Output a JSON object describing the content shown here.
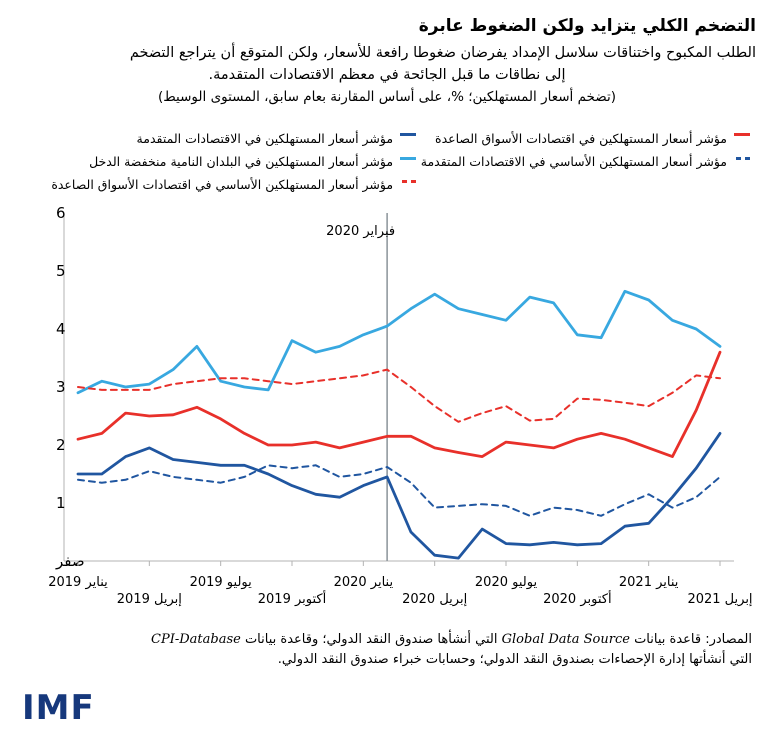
{
  "header": {
    "title": "التضخم الكلي يتزايد ولكن الضغوط عابرة",
    "subtitle_line1": "الطلب المكبوح واختناقات سلاسل الإمداد يفرضان ضغوطا رافعة للأسعار، ولكن المتوقع أن يتراجع التضخم",
    "subtitle_line2": "إلى نطاقات ما قبل الجائحة في معظم الاقتصادات المتقدمة.",
    "note": "(تضخم أسعار المستهلكين؛ %، على أساس المقارنة بعام سابق، المستوى الوسيط)"
  },
  "legend": {
    "items": [
      {
        "label": "مؤشر أسعار المستهلكين في اقتصادات الأسواق الصاعدة",
        "color": "#e8302a",
        "dash": false
      },
      {
        "label": "مؤشر أسعار المستهلكين في الاقتصادات المتقدمة",
        "color": "#2056a0",
        "dash": false
      },
      {
        "label": "مؤشر أسعار المستهلكين الأساسي في الاقتصادات المتقدمة",
        "color": "#2056a0",
        "dash": true
      },
      {
        "label": "مؤشر أسعار المستهلكين في البلدان النامية منخفضة الدخل",
        "color": "#38a8e0",
        "dash": false
      },
      {
        "label": "مؤشر أسعار المستهلكين الأساسي في اقتصادات الأسواق الصاعدة",
        "color": "#e8302a",
        "dash": true
      }
    ],
    "rows": [
      [
        0,
        1
      ],
      [
        2,
        3
      ],
      [
        4
      ]
    ]
  },
  "chart_data": {
    "type": "line",
    "x_months": [
      "2019-01",
      "2019-02",
      "2019-03",
      "2019-04",
      "2019-05",
      "2019-06",
      "2019-07",
      "2019-08",
      "2019-09",
      "2019-10",
      "2019-11",
      "2019-12",
      "2020-01",
      "2020-02",
      "2020-03",
      "2020-04",
      "2020-05",
      "2020-06",
      "2020-07",
      "2020-08",
      "2020-09",
      "2020-10",
      "2020-11",
      "2020-12",
      "2021-01",
      "2021-02",
      "2021-03",
      "2021-04"
    ],
    "x_tick_labels": [
      "يناير 2019",
      "إبريل 2019",
      "يوليو 2019",
      "أكتوبر 2019",
      "يناير 2020",
      "إبريل 2020",
      "يوليو 2020",
      "أكتوبر 2020",
      "يناير 2021",
      "إبريل 2021"
    ],
    "x_tick_month_indices": [
      0,
      3,
      6,
      9,
      12,
      15,
      18,
      21,
      24,
      27
    ],
    "y_ticks": [
      {
        "value": 0,
        "label": "صفر"
      },
      {
        "value": 1,
        "label": "1"
      },
      {
        "value": 2,
        "label": "2"
      },
      {
        "value": 3,
        "label": "3"
      },
      {
        "value": 4,
        "label": "4"
      },
      {
        "value": 5,
        "label": "5"
      },
      {
        "value": 6,
        "label": "6"
      }
    ],
    "ylim": [
      0,
      6
    ],
    "grid": false,
    "annotation": {
      "text": "فبراير 2020",
      "month_index": 13,
      "line_color": "#8b9399"
    },
    "series": [
      {
        "name": "مؤشر أسعار المستهلكين في البلدان النامية منخفضة الدخل",
        "color": "#38a8e0",
        "style": "solid",
        "values": [
          2.9,
          3.1,
          3.0,
          3.05,
          3.3,
          3.7,
          3.1,
          3.0,
          2.95,
          3.8,
          3.6,
          3.7,
          3.9,
          4.05,
          4.35,
          4.6,
          4.35,
          4.25,
          4.15,
          4.55,
          4.45,
          3.9,
          3.85,
          4.65,
          4.5,
          4.15,
          4.0,
          3.7
        ]
      },
      {
        "name": "مؤشر أسعار المستهلكين الأساسي في اقتصادات الأسواق الصاعدة",
        "color": "#e8302a",
        "style": "dashed",
        "values": [
          3.0,
          2.95,
          2.95,
          2.95,
          3.05,
          3.1,
          3.15,
          3.15,
          3.1,
          3.05,
          3.1,
          3.15,
          3.2,
          3.3,
          3.0,
          2.67,
          2.4,
          2.55,
          2.67,
          2.42,
          2.45,
          2.8,
          2.78,
          2.73,
          2.67,
          2.9,
          3.2,
          3.15
        ]
      },
      {
        "name": "مؤشر أسعار المستهلكين في اقتصادات الأسواق الصاعدة",
        "color": "#e8302a",
        "style": "solid",
        "values": [
          2.1,
          2.2,
          2.55,
          2.5,
          2.52,
          2.65,
          2.45,
          2.2,
          2.0,
          2.0,
          2.05,
          1.95,
          2.05,
          2.15,
          2.15,
          1.95,
          1.87,
          1.8,
          2.05,
          2.0,
          1.95,
          2.1,
          2.2,
          2.1,
          1.95,
          1.8,
          2.6,
          3.6
        ]
      },
      {
        "name": "مؤشر أسعار المستهلكين الأساسي في الاقتصادات المتقدمة",
        "color": "#2056a0",
        "style": "dashed",
        "values": [
          1.4,
          1.35,
          1.4,
          1.55,
          1.45,
          1.4,
          1.35,
          1.45,
          1.65,
          1.6,
          1.65,
          1.45,
          1.5,
          1.62,
          1.35,
          0.92,
          0.95,
          0.98,
          0.95,
          0.78,
          0.92,
          0.88,
          0.78,
          0.98,
          1.15,
          0.92,
          1.1,
          1.45
        ]
      },
      {
        "name": "مؤشر أسعار المستهلكين في الاقتصادات المتقدمة",
        "color": "#2056a0",
        "style": "solid",
        "values": [
          1.5,
          1.5,
          1.8,
          1.95,
          1.75,
          1.7,
          1.65,
          1.65,
          1.5,
          1.3,
          1.15,
          1.1,
          1.3,
          1.45,
          0.5,
          0.1,
          0.05,
          0.55,
          0.3,
          0.28,
          0.32,
          0.28,
          0.3,
          0.6,
          0.65,
          1.1,
          1.6,
          2.2
        ]
      }
    ]
  },
  "footer": {
    "sources_line1_parts": [
      {
        "t": "المصادر: قاعدة بيانات ",
        "italic": false
      },
      {
        "t": "Global Data Source",
        "italic": true
      },
      {
        "t": " التي أنشأها صندوق النقد الدولي؛ وقاعدة بيانات ",
        "italic": false
      },
      {
        "t": "CPI-Database",
        "italic": true
      }
    ],
    "sources_line2": "التي أنشأتها إدارة الإحصاءات بصندوق النقد الدولي؛ وحسابات خبراء صندوق النقد الدولي.",
    "logo_text": "IMF"
  }
}
